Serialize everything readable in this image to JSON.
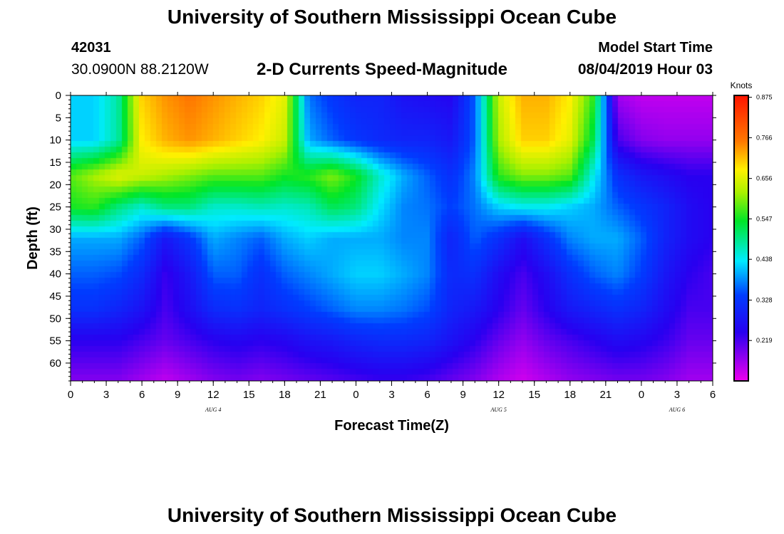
{
  "header": {
    "title": "University of Southern Mississippi Ocean Cube",
    "station_id": "42031",
    "station_coords": "30.0900N 88.2120W",
    "subtitle": "2-D Currents Speed-Magnitude",
    "model_start_label": "Model Start Time",
    "model_start_value": "08/04/2019 Hour 03"
  },
  "footer": {
    "title": "University of Southern Mississippi Ocean Cube"
  },
  "chart_data": {
    "type": "heatmap",
    "title": "2-D Currents Speed-Magnitude",
    "xlabel": "Forecast Time(Z)",
    "ylabel": "Depth (ft)",
    "x_unit": "hours from 08/04/2019 00Z",
    "xlim": [
      0,
      54
    ],
    "ylim": [
      0,
      64
    ],
    "y_inverted": true,
    "x_ticks": [
      0,
      3,
      6,
      9,
      12,
      15,
      18,
      21,
      24,
      27,
      30,
      33,
      36,
      39,
      42,
      45,
      48,
      51,
      54
    ],
    "x_tick_labels": [
      "0",
      "3",
      "6",
      "9",
      "12",
      "15",
      "18",
      "21",
      "0",
      "3",
      "6",
      "9",
      "12",
      "15",
      "18",
      "21",
      "0",
      "3",
      "6"
    ],
    "y_ticks": [
      0,
      5,
      10,
      15,
      20,
      25,
      30,
      35,
      40,
      45,
      50,
      55,
      60
    ],
    "y_tick_labels": [
      "0",
      "5",
      "10",
      "15",
      "20",
      "25",
      "30",
      "35",
      "40",
      "45",
      "50",
      "55",
      "60"
    ],
    "date_labels": [
      {
        "text": "AUG 4",
        "x": 12
      },
      {
        "text": "AUG 5",
        "x": 36
      },
      {
        "text": "AUG 6",
        "x": 51
      }
    ],
    "colorbar": {
      "label": "Knots",
      "min": 0.11,
      "max": 0.88,
      "ticks": [
        0.875,
        0.766,
        0.656,
        0.547,
        0.438,
        0.328,
        0.219
      ],
      "tick_labels": [
        "0.875",
        "0.766",
        "0.656",
        "0.547",
        "0.438",
        "0.328",
        "0.219"
      ]
    },
    "grid": false,
    "depths": [
      0,
      10,
      18,
      25,
      32,
      40,
      48,
      55,
      64
    ],
    "times": [
      0,
      2,
      4,
      6,
      8,
      10,
      12,
      14,
      16,
      18,
      20,
      22,
      24,
      26,
      28,
      30,
      32,
      34,
      36,
      38,
      40,
      42,
      44,
      46,
      48,
      50,
      52,
      54
    ],
    "speed_knots": [
      [
        0.42,
        0.42,
        0.48,
        0.7,
        0.74,
        0.76,
        0.74,
        0.72,
        0.7,
        0.66,
        0.37,
        0.33,
        0.3,
        0.3,
        0.27,
        0.26,
        0.25,
        0.36,
        0.64,
        0.72,
        0.72,
        0.68,
        0.56,
        0.16,
        0.14,
        0.14,
        0.14,
        0.14
      ],
      [
        0.42,
        0.42,
        0.48,
        0.68,
        0.72,
        0.74,
        0.72,
        0.7,
        0.68,
        0.64,
        0.4,
        0.36,
        0.33,
        0.31,
        0.3,
        0.3,
        0.28,
        0.36,
        0.62,
        0.7,
        0.7,
        0.66,
        0.52,
        0.22,
        0.18,
        0.17,
        0.17,
        0.17
      ],
      [
        0.58,
        0.62,
        0.66,
        0.64,
        0.62,
        0.6,
        0.58,
        0.58,
        0.58,
        0.55,
        0.56,
        0.6,
        0.55,
        0.46,
        0.4,
        0.36,
        0.32,
        0.38,
        0.56,
        0.6,
        0.6,
        0.58,
        0.44,
        0.32,
        0.28,
        0.26,
        0.24,
        0.24
      ],
      [
        0.55,
        0.56,
        0.5,
        0.46,
        0.5,
        0.5,
        0.46,
        0.46,
        0.47,
        0.46,
        0.47,
        0.52,
        0.5,
        0.43,
        0.38,
        0.37,
        0.34,
        0.37,
        0.42,
        0.44,
        0.44,
        0.42,
        0.4,
        0.36,
        0.33,
        0.3,
        0.26,
        0.24
      ],
      [
        0.4,
        0.4,
        0.4,
        0.36,
        0.28,
        0.33,
        0.4,
        0.38,
        0.36,
        0.4,
        0.42,
        0.4,
        0.4,
        0.4,
        0.38,
        0.38,
        0.3,
        0.36,
        0.32,
        0.26,
        0.32,
        0.38,
        0.4,
        0.4,
        0.36,
        0.3,
        0.26,
        0.24
      ],
      [
        0.36,
        0.36,
        0.35,
        0.31,
        0.23,
        0.28,
        0.36,
        0.36,
        0.32,
        0.36,
        0.38,
        0.4,
        0.42,
        0.42,
        0.4,
        0.38,
        0.31,
        0.32,
        0.26,
        0.22,
        0.26,
        0.32,
        0.36,
        0.38,
        0.34,
        0.28,
        0.24,
        0.22
      ],
      [
        0.32,
        0.32,
        0.3,
        0.27,
        0.22,
        0.26,
        0.31,
        0.32,
        0.3,
        0.32,
        0.34,
        0.36,
        0.38,
        0.38,
        0.37,
        0.35,
        0.3,
        0.28,
        0.24,
        0.2,
        0.24,
        0.28,
        0.3,
        0.32,
        0.3,
        0.26,
        0.22,
        0.22
      ],
      [
        0.24,
        0.24,
        0.24,
        0.22,
        0.2,
        0.22,
        0.24,
        0.25,
        0.24,
        0.25,
        0.27,
        0.28,
        0.3,
        0.31,
        0.31,
        0.3,
        0.27,
        0.24,
        0.2,
        0.17,
        0.2,
        0.22,
        0.24,
        0.26,
        0.25,
        0.23,
        0.2,
        0.2
      ],
      [
        0.18,
        0.18,
        0.18,
        0.16,
        0.14,
        0.16,
        0.18,
        0.19,
        0.18,
        0.19,
        0.2,
        0.21,
        0.22,
        0.23,
        0.23,
        0.22,
        0.2,
        0.18,
        0.15,
        0.13,
        0.15,
        0.17,
        0.18,
        0.19,
        0.19,
        0.18,
        0.16,
        0.16
      ]
    ]
  }
}
